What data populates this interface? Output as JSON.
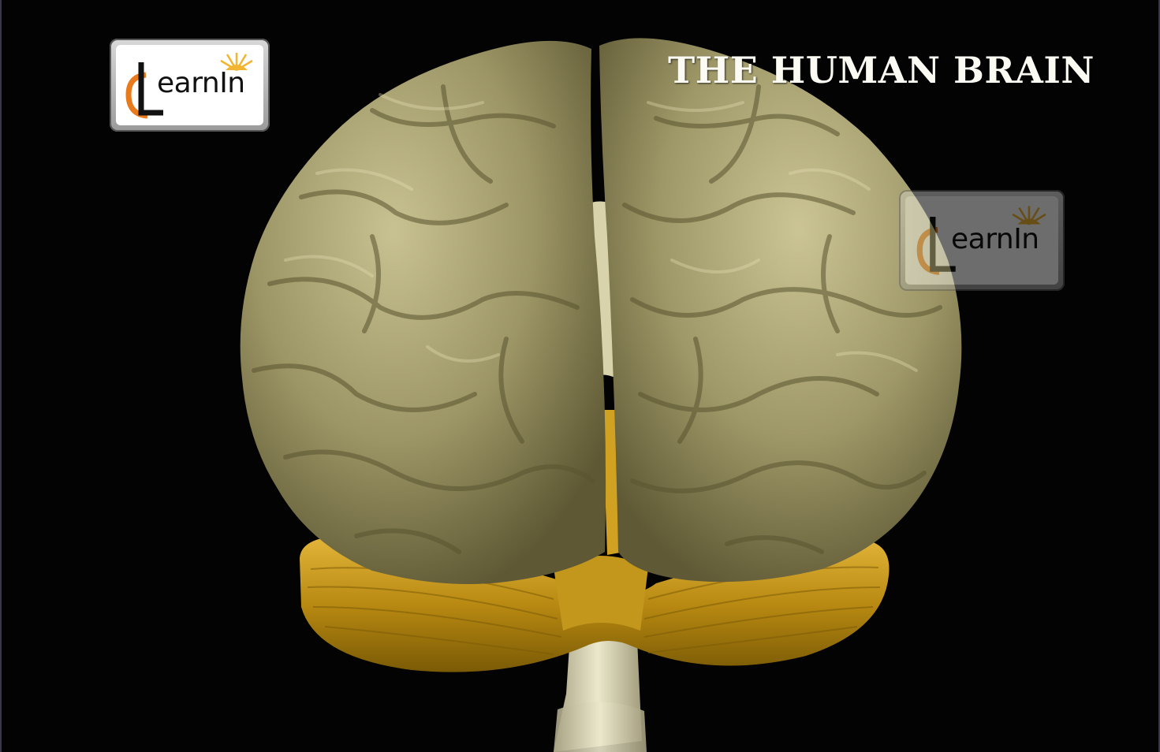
{
  "title": "THE HUMAN BRAIN",
  "logo": {
    "text": "earnIn",
    "mark_letters": "eL",
    "accent_color": "#e87b1e",
    "sun_color": "#f2b531"
  },
  "watermark": {
    "text": "earnIn"
  },
  "colors": {
    "background": "#030303",
    "cerebrum": "#9b9464",
    "cerebellum": "#b7860f",
    "brainstem": "#ddd8b8"
  }
}
